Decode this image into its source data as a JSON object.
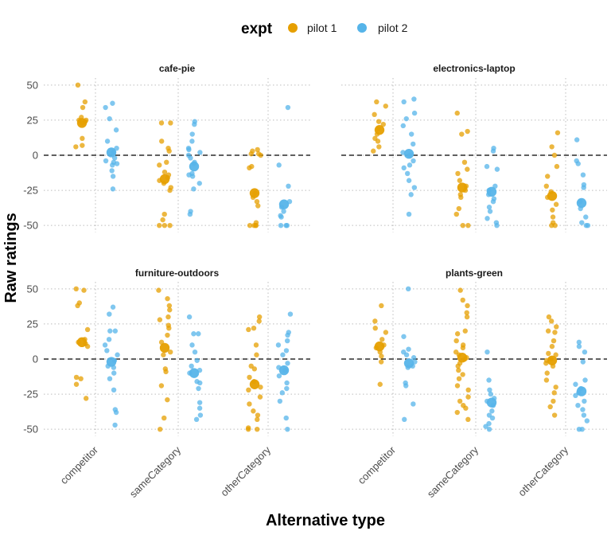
{
  "chart_data": {
    "type": "scatter",
    "xlabel": "Alternative type",
    "ylabel": "Raw ratings",
    "ylim": [
      -55,
      55
    ],
    "yticks": [
      -50,
      -25,
      0,
      25,
      50
    ],
    "categories": [
      "competitor",
      "sameCategory",
      "otherCategory"
    ],
    "reference_line": {
      "y": 0,
      "style": "dashed"
    },
    "grid": "dotted",
    "legend": {
      "title": "expt",
      "position": "top",
      "entries": [
        {
          "name": "pilot 1",
          "color": "#E69F00"
        },
        {
          "name": "pilot 2",
          "color": "#56B4E9"
        }
      ]
    },
    "panels": [
      {
        "title": "cafe-pie",
        "series": [
          {
            "name": "pilot 1",
            "means": [
              23,
              -17,
              -27
            ],
            "values": [
              [
                50,
                38,
                34,
                27,
                25,
                25,
                24,
                23,
                12,
                7,
                6
              ],
              [
                23,
                23,
                10,
                5,
                3,
                -5,
                -7,
                -12,
                -14,
                -16,
                -18,
                -20,
                -23,
                -25,
                -42,
                -46,
                -50,
                -50,
                -50
              ],
              [
                4,
                3,
                1,
                1,
                0,
                -8,
                -9,
                -27,
                -30,
                -33,
                -36,
                -48,
                -50,
                -50,
                -50,
                -50
              ]
            ]
          },
          {
            "name": "pilot 2",
            "means": [
              2,
              -8,
              -35
            ],
            "values": [
              [
                37,
                34,
                26,
                18,
                10,
                5,
                2,
                -2,
                -4,
                -5,
                -6,
                -7,
                -11,
                -15,
                -24
              ],
              [
                24,
                22,
                15,
                10,
                5,
                4,
                2,
                0,
                -2,
                -5,
                -6,
                -13,
                -14,
                -15,
                -20,
                -24,
                -40,
                -42
              ],
              [
                34,
                -7,
                -22,
                -33,
                -37,
                -40,
                -43,
                -44,
                -50,
                -50,
                -50
              ]
            ]
          }
        ]
      },
      {
        "title": "electronics-laptop",
        "series": [
          {
            "name": "pilot 1",
            "means": [
              18,
              -23,
              -29
            ],
            "values": [
              [
                38,
                35,
                29,
                24,
                22,
                19,
                15,
                12,
                10,
                6,
                3
              ],
              [
                30,
                17,
                15,
                -5,
                -10,
                -13,
                -18,
                -22,
                -25,
                -28,
                -30,
                -38,
                -42,
                -50,
                -50
              ],
              [
                16,
                6,
                0,
                -8,
                -15,
                -22,
                -26,
                -30,
                -35,
                -39,
                -44,
                -48,
                -50,
                -50
              ]
            ]
          },
          {
            "name": "pilot 2",
            "means": [
              1,
              -26,
              -34
            ],
            "values": [
              [
                40,
                38,
                30,
                26,
                21,
                15,
                8,
                2,
                0,
                -4,
                -7,
                -9,
                -13,
                -18,
                -23,
                -28,
                -42
              ],
              [
                5,
                3,
                -8,
                -10,
                -22,
                -25,
                -28,
                -31,
                -33,
                -37,
                -40,
                -45,
                -48,
                -50
              ],
              [
                11,
                -4,
                -6,
                -14,
                -21,
                -23,
                -33,
                -38,
                -44,
                -48,
                -50,
                -50
              ]
            ]
          }
        ]
      },
      {
        "title": "furniture-outdoors",
        "series": [
          {
            "name": "pilot 1",
            "means": [
              12,
              8,
              -18
            ],
            "values": [
              [
                50,
                49,
                40,
                38,
                21,
                14,
                12,
                11,
                9,
                -13,
                -14,
                -18,
                -28
              ],
              [
                49,
                43,
                38,
                35,
                30,
                28,
                24,
                22,
                17,
                12,
                5,
                3,
                -7,
                -9,
                -19,
                -29,
                -42,
                -50
              ],
              [
                30,
                27,
                22,
                21,
                10,
                3,
                -5,
                -7,
                -13,
                -16,
                -20,
                -22,
                -27,
                -32,
                -37,
                -40,
                -43,
                -49,
                -50,
                -50
              ]
            ]
          },
          {
            "name": "pilot 2",
            "means": [
              -2,
              -10,
              -8
            ],
            "values": [
              [
                37,
                32,
                20,
                20,
                14,
                10,
                6,
                3,
                -1,
                -5,
                -6,
                -10,
                -14,
                -22,
                -36,
                -38,
                -47
              ],
              [
                30,
                18,
                18,
                10,
                5,
                -1,
                -5,
                -8,
                -10,
                -16,
                -17,
                -21,
                -31,
                -35,
                -40,
                -43
              ],
              [
                32,
                19,
                17,
                13,
                10,
                6,
                3,
                -3,
                -6,
                -8,
                -12,
                -17,
                -21,
                -24,
                -30,
                -42,
                -50
              ]
            ]
          }
        ]
      },
      {
        "title": "plants-green",
        "series": [
          {
            "name": "pilot 1",
            "means": [
              9,
              1,
              -1
            ],
            "values": [
              [
                38,
                27,
                22,
                19,
                14,
                10,
                8,
                5,
                2,
                -2,
                -18
              ],
              [
                49,
                42,
                38,
                33,
                30,
                20,
                18,
                13,
                10,
                8,
                5,
                3,
                1,
                0,
                -3,
                -5,
                -8,
                -11,
                -14,
                -19,
                -22,
                -27,
                -30,
                -33,
                -35,
                -38,
                -43
              ],
              [
                30,
                27,
                23,
                20,
                19,
                13,
                9,
                4,
                3,
                0,
                -1,
                -3,
                -5,
                -10,
                -15,
                -20,
                -24,
                -30,
                -34,
                -40
              ]
            ]
          },
          {
            "name": "pilot 2",
            "means": [
              -3,
              -31,
              -23
            ],
            "values": [
              [
                50,
                16,
                7,
                5,
                3,
                1,
                -2,
                -5,
                -6,
                -17,
                -19,
                -32,
                -43
              ],
              [
                5,
                -15,
                -22,
                -25,
                -28,
                -30,
                -33,
                -37,
                -40,
                -42,
                -46,
                -48,
                -50
              ],
              [
                12,
                9,
                5,
                -2,
                -15,
                -18,
                -21,
                -24,
                -26,
                -30,
                -33,
                -36,
                -40,
                -44,
                -50,
                -50
              ]
            ]
          }
        ]
      }
    ]
  }
}
